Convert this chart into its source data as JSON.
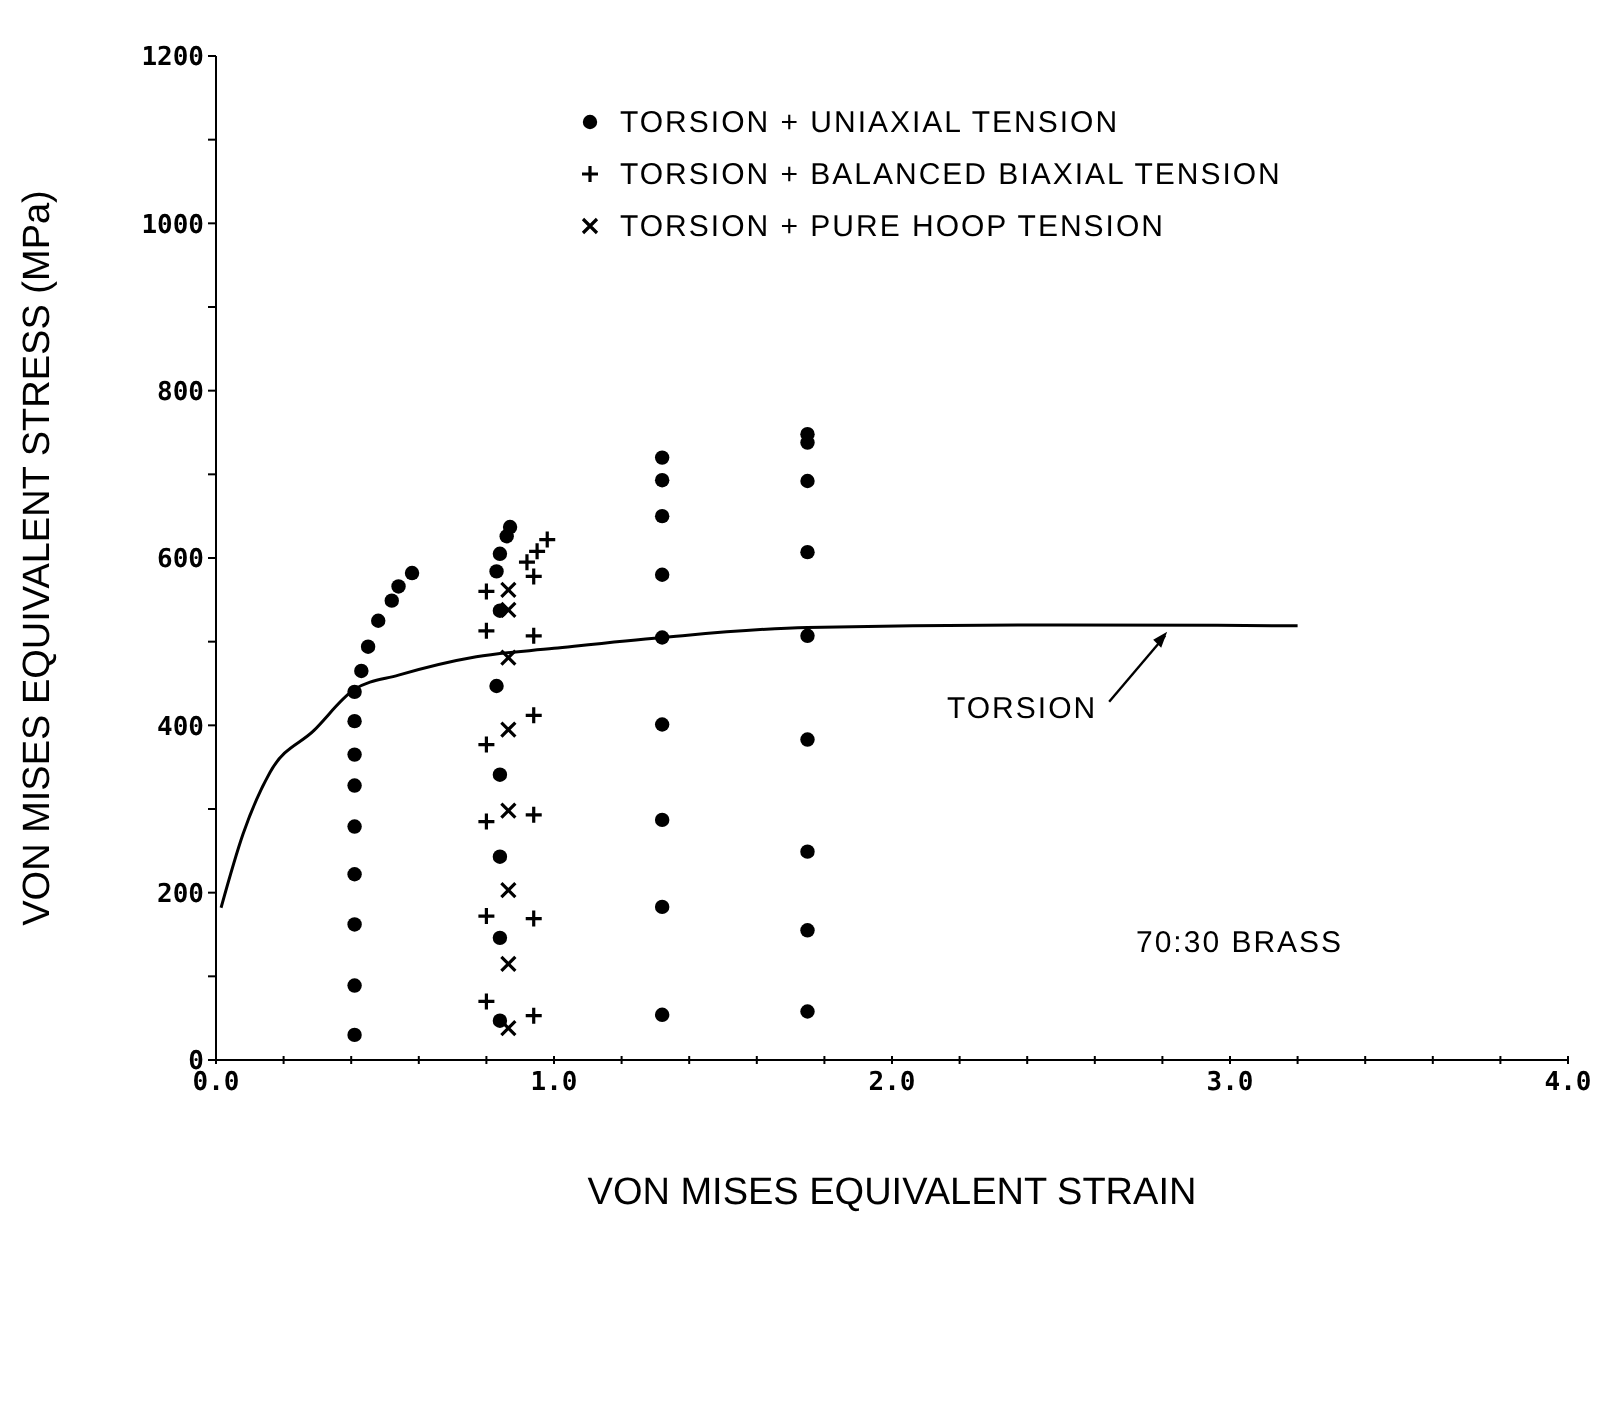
{
  "chart_data": {
    "type": "scatter",
    "xlabel": "VON MISES EQUIVALENT STRAIN",
    "ylabel": "VON MISES EQUIVALENT STRESS (MPa)",
    "xlim": [
      0,
      4
    ],
    "ylim": [
      0,
      1200
    ],
    "xticks": [
      {
        "value": 0,
        "label": "0.0"
      },
      {
        "value": 0.2,
        "label": null
      },
      {
        "value": 0.4,
        "label": null
      },
      {
        "value": 0.6,
        "label": null
      },
      {
        "value": 0.8,
        "label": null
      },
      {
        "value": 1,
        "label": "1.0"
      },
      {
        "value": 1.2,
        "label": null
      },
      {
        "value": 1.4,
        "label": null
      },
      {
        "value": 1.6,
        "label": null
      },
      {
        "value": 1.8,
        "label": null
      },
      {
        "value": 2,
        "label": "2.0"
      },
      {
        "value": 2.2,
        "label": null
      },
      {
        "value": 2.4,
        "label": null
      },
      {
        "value": 2.6,
        "label": null
      },
      {
        "value": 2.8,
        "label": null
      },
      {
        "value": 3,
        "label": "3.0"
      },
      {
        "value": 3.2,
        "label": null
      },
      {
        "value": 3.4,
        "label": null
      },
      {
        "value": 3.6,
        "label": null
      },
      {
        "value": 3.8,
        "label": null
      },
      {
        "value": 4,
        "label": "4.0"
      }
    ],
    "yticks": [
      0,
      {
        "value": 100,
        "label": null
      },
      200,
      {
        "value": 300,
        "label": null
      },
      400,
      {
        "value": 500,
        "label": null
      },
      600,
      {
        "value": 700,
        "label": null
      },
      800,
      {
        "value": 900,
        "label": null
      },
      1000,
      {
        "value": 1100,
        "label": null
      },
      1200
    ],
    "grid": false,
    "legend": "top",
    "series": [
      {
        "name": "TORSION + UNIAXIAL TENSION",
        "color": "#000000",
        "marker": "circle",
        "x": [
          0.41,
          0.41,
          0.41,
          0.41,
          0.41,
          0.41,
          0.41,
          0.41,
          0.41,
          0.43,
          0.45,
          0.48,
          0.52,
          0.54,
          0.58,
          0.84,
          0.84,
          0.84,
          0.84,
          0.83,
          0.84,
          0.83,
          0.84,
          0.86,
          0.87,
          1.32,
          1.32,
          1.32,
          1.32,
          1.32,
          1.32,
          1.32,
          1.32,
          1.32,
          1.75,
          1.75,
          1.75,
          1.75,
          1.75,
          1.75,
          1.75,
          1.75,
          1.75
        ],
        "values": [
          30,
          89,
          162,
          222,
          279,
          328,
          365,
          405,
          440,
          465,
          494,
          525,
          549,
          566,
          582,
          47,
          146,
          243,
          341,
          447,
          537,
          584,
          605,
          626,
          637,
          54,
          183,
          287,
          401,
          505,
          580,
          650,
          693,
          720,
          58,
          155,
          249,
          383,
          507,
          607,
          692,
          738,
          748
        ]
      },
      {
        "name": "TORSION + BALANCED BIAXIAL TENSION",
        "color": "#000000",
        "marker": "plus",
        "x": [
          0.8,
          0.94,
          0.8,
          0.94,
          0.8,
          0.94,
          0.8,
          0.94,
          0.8,
          0.94,
          0.8,
          0.94,
          0.92,
          0.95,
          0.98
        ],
        "values": [
          70,
          53,
          172,
          169,
          285,
          293,
          377,
          412,
          513,
          507,
          560,
          578,
          595,
          608,
          622
        ]
      },
      {
        "name": "TORSION + PURE HOOP TENSION",
        "color": "#000000",
        "marker": "cross",
        "x": [
          0.865,
          0.865,
          0.865,
          0.865,
          0.865,
          0.865,
          0.865,
          0.865
        ],
        "values": [
          38,
          115,
          203,
          298,
          395,
          481,
          538,
          562
        ]
      },
      {
        "type": "line",
        "color": "#000000",
        "marker": "none",
        "line_style": "solid",
        "x": [
          0.015,
          0.08,
          0.16,
          0.29,
          0.41,
          0.54,
          0.77,
          1.0,
          1.32,
          1.75,
          2.5,
          3.2
        ],
        "values": [
          182,
          270,
          344,
          394,
          443,
          460,
          482,
          492,
          505,
          517,
          520,
          519
        ]
      }
    ],
    "annotations": [
      {
        "text": "TORSION",
        "x": 2.82,
        "y": 519
      },
      "70:30 BRASS"
    ]
  }
}
